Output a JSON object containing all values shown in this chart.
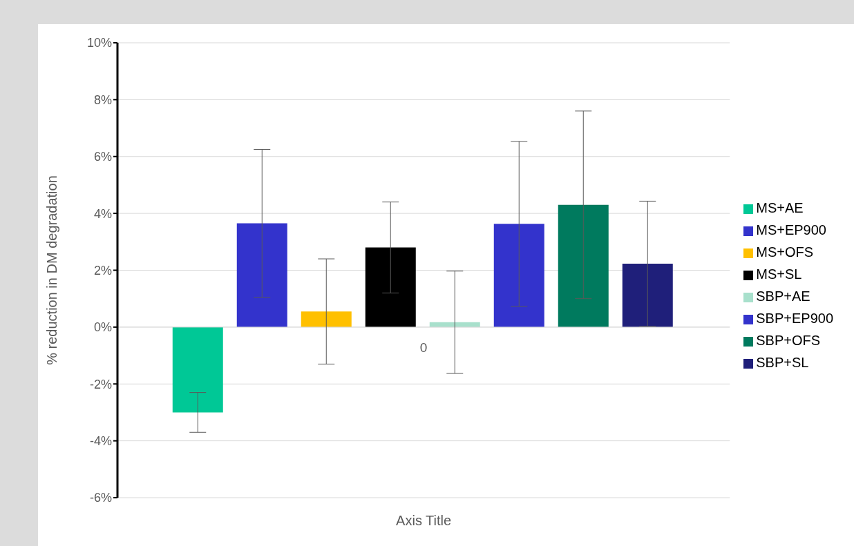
{
  "chart_data": {
    "type": "bar",
    "ylabel": "% reduction in DM degradation",
    "xlabel": "Axis Title",
    "categories": [
      "0"
    ],
    "series": [
      {
        "name": "MS+AE",
        "color": "#00c896",
        "values": [
          -3.0
        ],
        "errors": [
          0.7
        ]
      },
      {
        "name": "MS+EP900",
        "color": "#3333cc",
        "values": [
          3.65
        ],
        "errors": [
          2.6
        ]
      },
      {
        "name": "MS+OFS",
        "color": "#ffc000",
        "values": [
          0.55
        ],
        "errors": [
          1.85
        ]
      },
      {
        "name": "MS+SL",
        "color": "#000000",
        "values": [
          2.8
        ],
        "errors": [
          1.6
        ]
      },
      {
        "name": "SBP+AE",
        "color": "#a8e0cc",
        "values": [
          0.17
        ],
        "errors": [
          1.8
        ]
      },
      {
        "name": "SBP+EP900",
        "color": "#3333cc",
        "values": [
          3.63
        ],
        "errors": [
          2.9
        ]
      },
      {
        "name": "SBP+OFS",
        "color": "#007a5e",
        "values": [
          4.3
        ],
        "errors": [
          3.3
        ]
      },
      {
        "name": "SBP+SL",
        "color": "#1f1f7a",
        "values": [
          2.23
        ],
        "errors": [
          2.2
        ]
      }
    ],
    "ylim": [
      -6,
      10
    ],
    "yticks": [
      {
        "value": -6,
        "label": "-6%"
      },
      {
        "value": -4,
        "label": "-4%"
      },
      {
        "value": -2,
        "label": "-2%"
      },
      {
        "value": 0,
        "label": "0%"
      },
      {
        "value": 2,
        "label": "2%"
      },
      {
        "value": 4,
        "label": "4%"
      },
      {
        "value": 6,
        "label": "6%"
      },
      {
        "value": 8,
        "label": "8%"
      },
      {
        "value": 10,
        "label": "10%"
      }
    ],
    "grid": "y",
    "legend": "right"
  }
}
